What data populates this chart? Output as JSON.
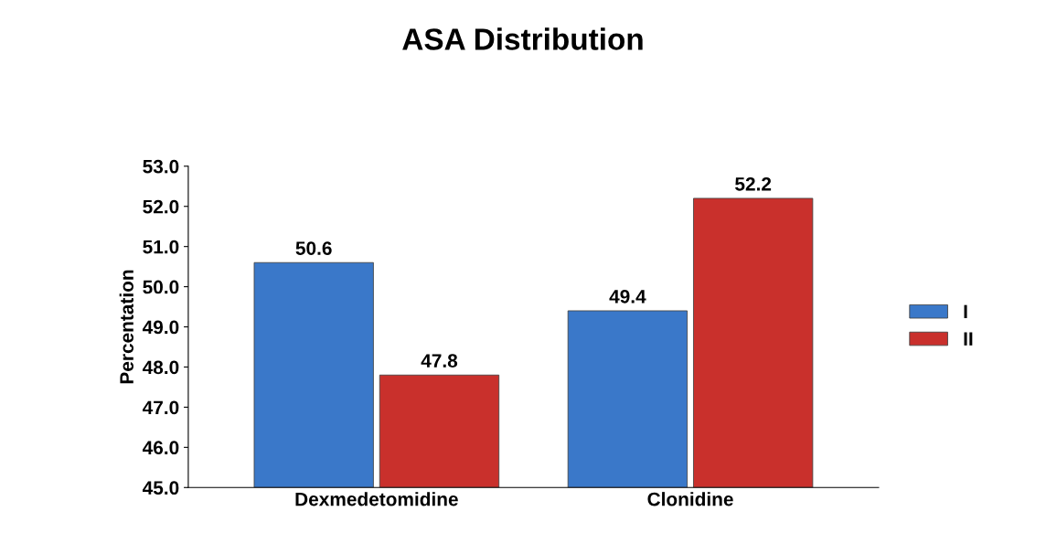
{
  "chart_data": {
    "type": "bar",
    "title": "ASA Distribution",
    "ylabel": "Percentation",
    "categories": [
      "Dexmedetomidine",
      "Clonidine"
    ],
    "series": [
      {
        "name": "I",
        "color": "#3a78c9",
        "values": [
          50.6,
          49.4
        ]
      },
      {
        "name": "II",
        "color": "#c9302c",
        "values": [
          47.8,
          52.2
        ]
      }
    ],
    "ylim": [
      45,
      53
    ],
    "yticks": [
      {
        "value": 45,
        "label": "45.0"
      },
      {
        "value": 46,
        "label": "46.0"
      },
      {
        "value": 47,
        "label": "47.0"
      },
      {
        "value": 48,
        "label": "48.0"
      },
      {
        "value": 49,
        "label": "49.0"
      },
      {
        "value": 50,
        "label": "50.0"
      },
      {
        "value": 51,
        "label": "51.0"
      },
      {
        "value": 52,
        "label": "52.0"
      },
      {
        "value": 53,
        "label": "53.0"
      }
    ],
    "data_labels": true,
    "legend": "right",
    "grid": false
  }
}
